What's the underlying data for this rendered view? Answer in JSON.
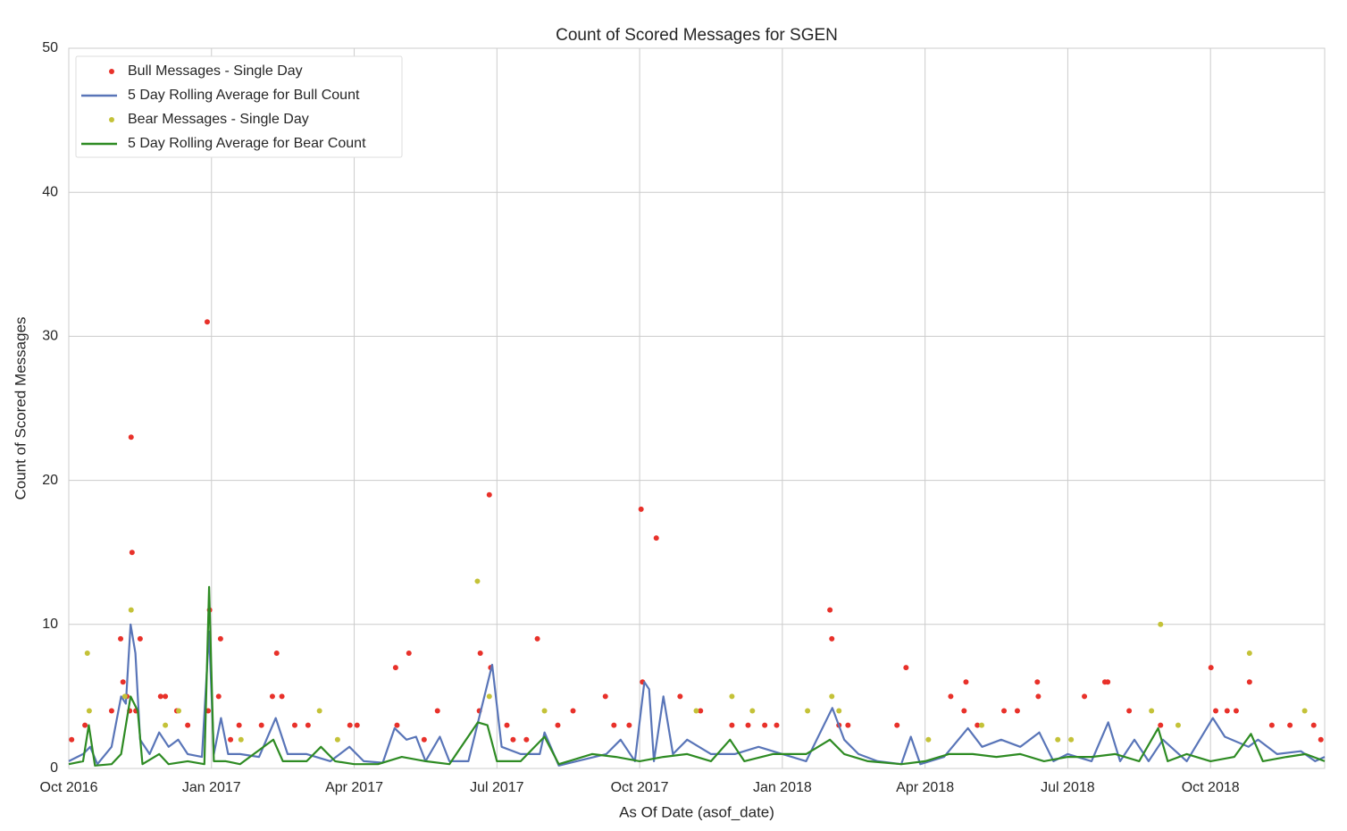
{
  "chart_data": {
    "type": "scatter",
    "title": "Count of Scored Messages for SGEN",
    "xlabel": "As Of Date (asof_date)",
    "ylabel": "Count of Scored Messages",
    "xlim": [
      0,
      26.4
    ],
    "xticks": [
      {
        "value": 0,
        "label": "Oct 2016"
      },
      {
        "value": 3,
        "label": "Jan 2017"
      },
      {
        "value": 6,
        "label": "Apr 2017"
      },
      {
        "value": 9,
        "label": "Jul 2017"
      },
      {
        "value": 12,
        "label": "Oct 2017"
      },
      {
        "value": 15,
        "label": "Jan 2018"
      },
      {
        "value": 18,
        "label": "Apr 2018"
      },
      {
        "value": 21,
        "label": "Jul 2018"
      },
      {
        "value": 24,
        "label": "Oct 2018"
      }
    ],
    "ylim": [
      0,
      50
    ],
    "yticks": [
      0,
      10,
      20,
      30,
      40,
      50
    ],
    "grid": true,
    "legend": "upper left",
    "series": [
      {
        "name": "Bull Messages - Single Day",
        "type": "scatter",
        "color": "#e8312a",
        "x": [
          0.06,
          0.34,
          0.9,
          1.09,
          1.14,
          1.22,
          1.31,
          1.33,
          1.28,
          1.41,
          1.5,
          1.93,
          2.03,
          2.27,
          2.5,
          2.91,
          2.96,
          2.93,
          3.19,
          3.15,
          3.4,
          3.58,
          4.05,
          4.28,
          4.37,
          4.48,
          4.75,
          5.03,
          5.91,
          6.06,
          6.87,
          7.15,
          6.9,
          7.47,
          7.75,
          8.65,
          8.63,
          8.84,
          8.87,
          9.21,
          9.34,
          9.62,
          9.85,
          10.28,
          10.6,
          11.28,
          11.46,
          12.03,
          12.06,
          12.35,
          11.78,
          12.85,
          13.28,
          13.94,
          14.28,
          14.63,
          14.88,
          16.0,
          16.04,
          16.19,
          16.38,
          17.6,
          17.41,
          18.54,
          18.82,
          18.86,
          19.1,
          19.66,
          19.94,
          20.36,
          20.38,
          21.35,
          21.78,
          21.84,
          22.29,
          22.95,
          24.01,
          24.11,
          24.35,
          24.54,
          24.82,
          25.29,
          25.67,
          26.17,
          26.32
        ],
        "values": [
          2,
          3,
          4,
          9,
          6,
          5,
          23,
          15,
          4,
          4,
          9,
          5,
          5,
          4,
          3,
          31,
          11,
          4,
          9,
          5,
          2,
          3,
          3,
          5,
          8,
          5,
          3,
          3,
          3,
          3,
          7,
          8,
          3,
          2,
          4,
          8,
          4,
          19,
          7,
          3,
          2,
          2,
          9,
          3,
          4,
          5,
          3,
          18,
          6,
          16,
          3,
          5,
          4,
          3,
          3,
          3,
          3,
          11,
          9,
          3,
          3,
          7,
          3,
          5,
          4,
          6,
          3,
          4,
          4,
          6,
          5,
          5,
          6,
          6,
          4,
          3,
          7,
          4,
          4,
          4,
          6,
          3,
          3,
          3,
          2
        ]
      },
      {
        "name": "5 Day Rolling Average for Bull Count",
        "type": "line",
        "color": "#5975b8",
        "x": [
          0,
          0.3,
          0.45,
          0.6,
          0.9,
          1.1,
          1.2,
          1.3,
          1.4,
          1.5,
          1.7,
          1.9,
          2.1,
          2.3,
          2.5,
          2.8,
          2.95,
          3.05,
          3.2,
          3.35,
          3.6,
          4.0,
          4.35,
          4.6,
          5.0,
          5.5,
          5.9,
          6.2,
          6.6,
          6.85,
          7.1,
          7.3,
          7.5,
          7.8,
          8.0,
          8.4,
          8.9,
          9.1,
          9.5,
          9.9,
          10.0,
          10.3,
          10.8,
          11.3,
          11.6,
          11.9,
          12.1,
          12.2,
          12.3,
          12.5,
          12.7,
          13.0,
          13.5,
          14.0,
          14.5,
          15.0,
          15.5,
          16.05,
          16.3,
          16.6,
          17.0,
          17.5,
          17.7,
          17.9,
          18.4,
          18.9,
          19.2,
          19.6,
          20.0,
          20.4,
          20.7,
          21.0,
          21.5,
          21.85,
          22.1,
          22.4,
          22.7,
          23.0,
          23.5,
          24.05,
          24.3,
          24.8,
          25.0,
          25.4,
          25.9,
          26.2,
          26.4
        ],
        "values": [
          0.5,
          1,
          1.5,
          0.3,
          1.5,
          5,
          4.5,
          10,
          8,
          2,
          1,
          2.5,
          1.5,
          2,
          1,
          0.8,
          9.5,
          1,
          3.5,
          1,
          1,
          0.8,
          3.5,
          1,
          1,
          0.5,
          1.5,
          0.5,
          0.4,
          2.8,
          2,
          2.2,
          0.5,
          2.2,
          0.5,
          0.5,
          7.2,
          1.5,
          1,
          1,
          2.5,
          0.2,
          0.6,
          1,
          2,
          0.5,
          6,
          5.5,
          0.5,
          5,
          1,
          2,
          1,
          1,
          1.5,
          1,
          0.5,
          4.2,
          2,
          1,
          0.5,
          0.3,
          2.2,
          0.3,
          0.8,
          2.8,
          1.5,
          2,
          1.5,
          2.5,
          0.5,
          1,
          0.5,
          3.2,
          0.5,
          2,
          0.5,
          2,
          0.5,
          3.5,
          2.2,
          1.5,
          2,
          1,
          1.2,
          0.5,
          0.8
        ]
      },
      {
        "name": "Bear Messages - Single Day",
        "type": "scatter",
        "color": "#c4c238",
        "x": [
          0.39,
          0.43,
          1.31,
          1.18,
          2.03,
          2.31,
          3.62,
          5.27,
          5.65,
          8.59,
          8.84,
          10.0,
          13.19,
          13.94,
          14.37,
          15.53,
          16.04,
          16.19,
          19.19,
          22.76,
          22.95,
          23.32,
          24.82,
          25.98,
          18.07,
          20.79,
          21.07
        ],
        "values": [
          8,
          4,
          11,
          5,
          3,
          4,
          2,
          4,
          2,
          13,
          5,
          4,
          4,
          5,
          4,
          4,
          5,
          4,
          3,
          4,
          10,
          3,
          8,
          4,
          2,
          2,
          2
        ]
      },
      {
        "name": "5 Day Rolling Average for Bear Count",
        "type": "line",
        "color": "#2e8b23",
        "x": [
          0,
          0.3,
          0.42,
          0.55,
          0.9,
          1.1,
          1.3,
          1.45,
          1.55,
          1.9,
          2.1,
          2.5,
          2.85,
          2.95,
          3.05,
          3.3,
          3.6,
          4.3,
          4.5,
          5.0,
          5.3,
          5.6,
          6.0,
          6.5,
          7.0,
          7.5,
          8.0,
          8.6,
          8.8,
          9.0,
          9.5,
          10.0,
          10.3,
          11.0,
          11.5,
          12.0,
          12.5,
          13.0,
          13.5,
          13.9,
          14.2,
          14.8,
          15.5,
          16.0,
          16.3,
          16.8,
          17.5,
          18.0,
          18.5,
          19.0,
          19.5,
          20.0,
          20.5,
          21.0,
          21.5,
          22.0,
          22.5,
          22.9,
          23.1,
          23.5,
          24.0,
          24.5,
          24.85,
          25.1,
          25.6,
          26.0,
          26.4
        ],
        "values": [
          0.3,
          0.5,
          3,
          0.2,
          0.3,
          1,
          5,
          4,
          0.3,
          1,
          0.3,
          0.5,
          0.3,
          12.6,
          0.5,
          0.5,
          0.3,
          2,
          0.5,
          0.5,
          1.5,
          0.5,
          0.3,
          0.3,
          0.8,
          0.5,
          0.3,
          3.2,
          3,
          0.5,
          0.5,
          2.2,
          0.3,
          1,
          0.8,
          0.5,
          0.8,
          1,
          0.5,
          2,
          0.5,
          1,
          1,
          2,
          1,
          0.5,
          0.3,
          0.5,
          1,
          1,
          0.8,
          1,
          0.5,
          0.8,
          0.8,
          1,
          0.5,
          2.8,
          0.5,
          1,
          0.5,
          0.8,
          2.4,
          0.5,
          0.8,
          1,
          0.5
        ]
      }
    ]
  }
}
